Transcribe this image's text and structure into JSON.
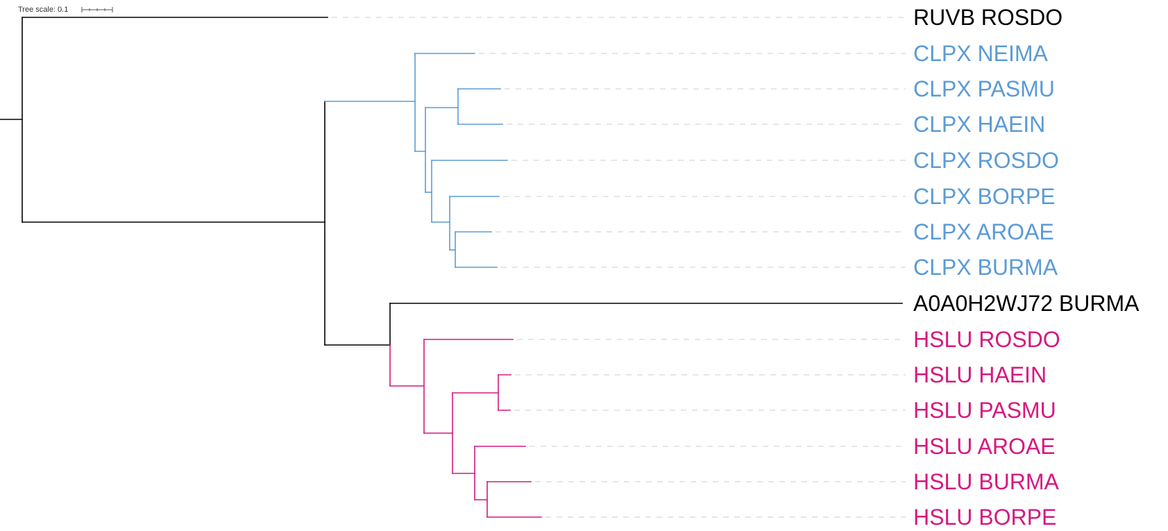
{
  "scale_bar": {
    "label": "Tree scale: 0.1"
  },
  "colors": {
    "default": "#000000",
    "clpx": "#5b9bd5",
    "hslu": "#d6187f",
    "guide": "#cccccc",
    "scale": "#555555"
  },
  "leaves": [
    {
      "id": "l0",
      "label": "RUVB ROSDO",
      "clade": "default"
    },
    {
      "id": "l1",
      "label": "CLPX NEIMA",
      "clade": "clpx"
    },
    {
      "id": "l2",
      "label": "CLPX PASMU",
      "clade": "clpx"
    },
    {
      "id": "l3",
      "label": "CLPX HAEIN",
      "clade": "clpx"
    },
    {
      "id": "l4",
      "label": "CLPX ROSDO",
      "clade": "clpx"
    },
    {
      "id": "l5",
      "label": "CLPX BORPE",
      "clade": "clpx"
    },
    {
      "id": "l6",
      "label": "CLPX AROAE",
      "clade": "clpx"
    },
    {
      "id": "l7",
      "label": "CLPX BURMA",
      "clade": "clpx"
    },
    {
      "id": "l8",
      "label": "A0A0H2WJ72 BURMA",
      "clade": "default"
    },
    {
      "id": "l9",
      "label": "HSLU ROSDO",
      "clade": "hslu"
    },
    {
      "id": "l10",
      "label": "HSLU HAEIN",
      "clade": "hslu"
    },
    {
      "id": "l11",
      "label": "HSLU PASMU",
      "clade": "hslu"
    },
    {
      "id": "l12",
      "label": "HSLU AROAE",
      "clade": "hslu"
    },
    {
      "id": "l13",
      "label": "HSLU BURMA",
      "clade": "hslu"
    },
    {
      "id": "l14",
      "label": "HSLU BORPE",
      "clade": "hslu"
    }
  ]
}
